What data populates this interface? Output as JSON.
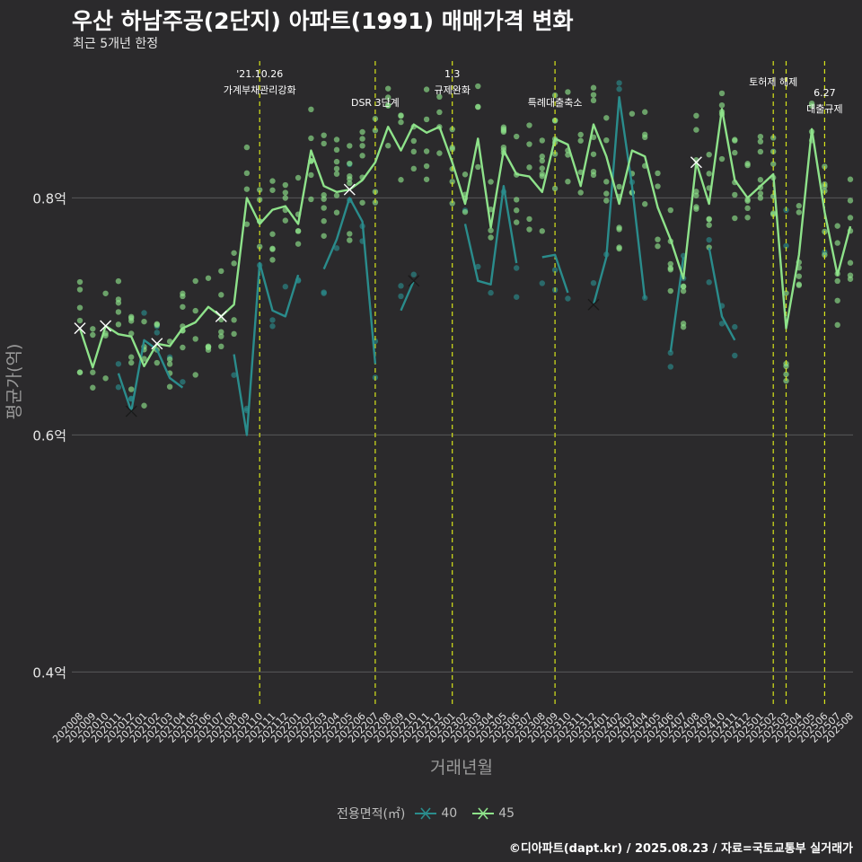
{
  "title": "우산 하남주공(2단지) 아파트(1991) 매매가격 변화",
  "subtitle": "최근 5개년 한정",
  "caption": "©디아파트(dapt.kr) / 2025.08.23 / 자료=국토교통부 실거래가",
  "colors": {
    "background": "#2b2a2c",
    "grid": "#595959",
    "series_40": "#2a8c8c",
    "series_45": "#8ee28a",
    "event_line": "#d7e51a"
  },
  "chart_data": {
    "type": "line",
    "xlabel": "거래년월",
    "ylabel": "평균가(억)",
    "ylim": [
      0.37,
      0.92
    ],
    "y_ticks": [
      {
        "value": 0.4,
        "label": "0.4억"
      },
      {
        "value": 0.6,
        "label": "0.6억"
      },
      {
        "value": 0.8,
        "label": "0.8억"
      }
    ],
    "x": [
      "202008",
      "202009",
      "202010",
      "202011",
      "202012",
      "202101",
      "202102",
      "202103",
      "202104",
      "202105",
      "202106",
      "202107",
      "202108",
      "202109",
      "202110",
      "202111",
      "202112",
      "202201",
      "202202",
      "202203",
      "202204",
      "202205",
      "202206",
      "202207",
      "202208",
      "202209",
      "202210",
      "202211",
      "202212",
      "202301",
      "202302",
      "202303",
      "202304",
      "202305",
      "202306",
      "202307",
      "202308",
      "202309",
      "202310",
      "202311",
      "202312",
      "202401",
      "202402",
      "202403",
      "202404",
      "202405",
      "202406",
      "202407",
      "202408",
      "202409",
      "202410",
      "202411",
      "202412",
      "202501",
      "202502",
      "202503",
      "202504",
      "202505",
      "202506",
      "202507",
      "202508"
    ],
    "grid": true,
    "legend": {
      "title": "전용면적(㎡)",
      "position": "bottom"
    },
    "series": [
      {
        "name": "40",
        "color": "#2a8c8c",
        "values": [
          null,
          null,
          null,
          0.652,
          0.62,
          0.68,
          0.672,
          0.648,
          0.64,
          null,
          null,
          null,
          0.668,
          0.6,
          0.745,
          0.705,
          0.7,
          0.735,
          null,
          0.74,
          0.765,
          0.8,
          0.78,
          0.66,
          null,
          0.705,
          0.73,
          null,
          null,
          null,
          0.778,
          0.73,
          0.727,
          0.81,
          0.745,
          null,
          0.75,
          0.752,
          0.72,
          null,
          0.71,
          0.75,
          0.885,
          0.81,
          0.715,
          null,
          0.67,
          0.75,
          null,
          0.758,
          0.7,
          0.68,
          null,
          null,
          null,
          0.76,
          null,
          null,
          0.75,
          null,
          null
        ]
      },
      {
        "name": "45",
        "color": "#8ee28a",
        "values": [
          0.69,
          0.657,
          0.692,
          0.685,
          0.683,
          0.658,
          0.677,
          0.675,
          0.69,
          0.695,
          0.708,
          0.7,
          0.71,
          0.8,
          0.778,
          0.79,
          0.793,
          0.778,
          0.84,
          0.81,
          0.805,
          0.807,
          0.815,
          0.83,
          0.86,
          0.84,
          0.862,
          0.855,
          0.86,
          0.83,
          0.795,
          0.85,
          0.775,
          0.84,
          0.82,
          0.818,
          0.805,
          0.85,
          0.845,
          0.81,
          0.862,
          0.835,
          0.795,
          0.84,
          0.835,
          0.792,
          0.765,
          0.732,
          0.83,
          0.795,
          0.875,
          0.815,
          0.8,
          0.81,
          0.82,
          0.69,
          0.752,
          0.858,
          0.788,
          0.735,
          0.776
        ]
      }
    ],
    "events": [
      {
        "x": "202110",
        "label": "'21.10.26\n가계부채관리강화"
      },
      {
        "x": "202207",
        "label": "DSR 3단계"
      },
      {
        "x": "202301",
        "label": "1.3\n규제완화"
      },
      {
        "x": "202309",
        "label": "특례대출축소"
      },
      {
        "x": "202502",
        "label": "토허제 해제"
      },
      {
        "x": "202503",
        "label": ""
      },
      {
        "x": "202506",
        "label": "6.27\n대출규제"
      }
    ]
  }
}
